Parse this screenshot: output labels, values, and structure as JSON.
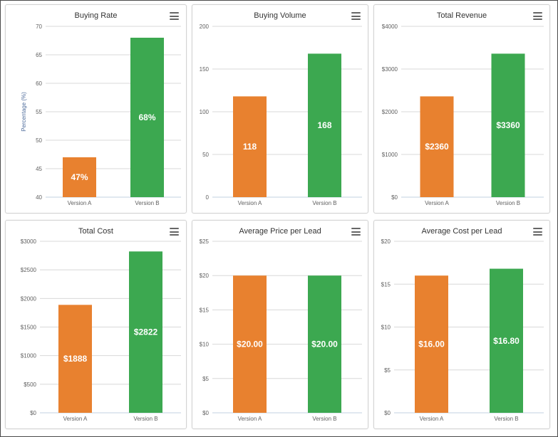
{
  "colors": {
    "version_a": "#e8812f",
    "version_b": "#3ca850",
    "grid": "#d8d8d8"
  },
  "icons": {
    "menu": "hamburger-menu-icon"
  },
  "chart_data": [
    {
      "type": "bar",
      "title": "Buying Rate",
      "categories": [
        "Version A",
        "Version B"
      ],
      "values": [
        47,
        68
      ],
      "data_labels": [
        "47%",
        "68%"
      ],
      "ylim": [
        40,
        70
      ],
      "yticks": [
        40,
        45,
        50,
        55,
        60,
        65,
        70
      ],
      "ytick_labels": [
        "40",
        "45",
        "50",
        "55",
        "60",
        "65",
        "70"
      ],
      "xlabel": "",
      "ylabel": "Percentage (%)",
      "grid": true,
      "legend": false
    },
    {
      "type": "bar",
      "title": "Buying Volume",
      "categories": [
        "Version A",
        "Version B"
      ],
      "values": [
        118,
        168
      ],
      "data_labels": [
        "118",
        "168"
      ],
      "ylim": [
        0,
        200
      ],
      "yticks": [
        0,
        50,
        100,
        150,
        200
      ],
      "ytick_labels": [
        "0",
        "50",
        "100",
        "150",
        "200"
      ],
      "xlabel": "",
      "ylabel": "",
      "grid": true,
      "legend": false
    },
    {
      "type": "bar",
      "title": "Total Revenue",
      "categories": [
        "Version A",
        "Version B"
      ],
      "values": [
        2360,
        3360
      ],
      "data_labels": [
        "$2360",
        "$3360"
      ],
      "ylim": [
        0,
        4000
      ],
      "yticks": [
        0,
        1000,
        2000,
        3000,
        4000
      ],
      "ytick_labels": [
        "$0",
        "$1000",
        "$2000",
        "$3000",
        "$4000"
      ],
      "xlabel": "",
      "ylabel": "",
      "grid": true,
      "legend": false
    },
    {
      "type": "bar",
      "title": "Total Cost",
      "categories": [
        "Version A",
        "Version B"
      ],
      "values": [
        1888,
        2822
      ],
      "data_labels": [
        "$1888",
        "$2822"
      ],
      "ylim": [
        0,
        3000
      ],
      "yticks": [
        0,
        500,
        1000,
        1500,
        2000,
        2500,
        3000
      ],
      "ytick_labels": [
        "$0",
        "$500",
        "$1000",
        "$1500",
        "$2000",
        "$2500",
        "$3000"
      ],
      "xlabel": "",
      "ylabel": "",
      "grid": true,
      "legend": false
    },
    {
      "type": "bar",
      "title": "Average Price per Lead",
      "categories": [
        "Version A",
        "Version B"
      ],
      "values": [
        20.0,
        20.0
      ],
      "data_labels": [
        "$20.00",
        "$20.00"
      ],
      "ylim": [
        0,
        25
      ],
      "yticks": [
        0,
        5,
        10,
        15,
        20,
        25
      ],
      "ytick_labels": [
        "$0",
        "$5",
        "$10",
        "$15",
        "$20",
        "$25"
      ],
      "xlabel": "",
      "ylabel": "",
      "grid": true,
      "legend": false
    },
    {
      "type": "bar",
      "title": "Average Cost per Lead",
      "categories": [
        "Version A",
        "Version B"
      ],
      "values": [
        16.0,
        16.8
      ],
      "data_labels": [
        "$16.00",
        "$16.80"
      ],
      "ylim": [
        0,
        20
      ],
      "yticks": [
        0,
        5,
        10,
        15,
        20
      ],
      "ytick_labels": [
        "$0",
        "$5",
        "$10",
        "$15",
        "$20"
      ],
      "xlabel": "",
      "ylabel": "",
      "grid": true,
      "legend": false
    }
  ]
}
